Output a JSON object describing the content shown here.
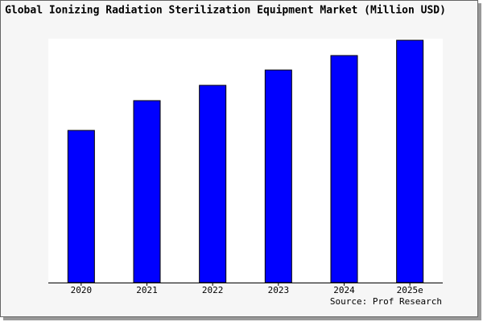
{
  "chart_data": {
    "type": "bar",
    "title": "Global Ionizing Radiation Sterilization Equipment Market (Million USD)",
    "source": "Source: Prof Research",
    "categories": [
      "2020",
      "2021",
      "2022",
      "2023",
      "2024",
      "2025e"
    ],
    "values": [
      189,
      226,
      245,
      264,
      282,
      301
    ],
    "color": "#0000ff",
    "ylim": [
      0,
      303
    ]
  }
}
